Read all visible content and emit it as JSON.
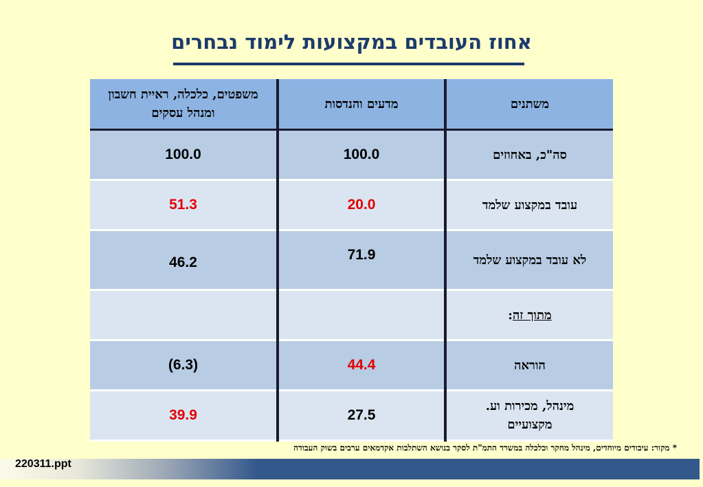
{
  "title": "אחוז העובדים במקצועות לימוד נבחרים",
  "table": {
    "headers": {
      "variables": "משתנים",
      "sciences": "מדעים והנדסות",
      "law": "משפטים, כלכלה, ראיית חשבון ומנהל עסקים"
    },
    "rows": [
      {
        "label": "סה\"כ, באחוזים",
        "sciences": "100.0",
        "law": "100.0",
        "sciences_red": false,
        "law_red": false
      },
      {
        "label": "עובד במקצוע שלמד",
        "sciences": "20.0",
        "law": "51.3",
        "sciences_red": true,
        "law_red": true
      },
      {
        "label": "לא עובד במקצוע שלמד",
        "sciences": "71.9",
        "law": "46.2",
        "sciences_red": false,
        "law_red": false
      },
      {
        "label": "מתוך זה",
        "label_suffix": ":",
        "sciences": "",
        "law": "",
        "sciences_red": false,
        "law_red": false
      },
      {
        "label": "הוראה",
        "sciences": "44.4",
        "law": "(6.3)",
        "sciences_red": true,
        "law_red": false
      },
      {
        "label": "מינהל, מכירות וע. מקצועיים",
        "sciences": "27.5",
        "law": "39.9",
        "sciences_red": false,
        "law_red": true
      }
    ]
  },
  "footnote": "* מקור: עיבודים מיוחדים, מינהל מחקר וכלכלה במשרד התמ\"ת לסקר בנושא השתלבות אקדמאים ערבים בשוק העבודה",
  "file_label": "220311.ppt",
  "colors": {
    "title": "#1c3a6b",
    "header_bg": "#8db3e2",
    "row_dark": "#b8cce4",
    "row_light": "#dbe5f1",
    "highlight_red": "#e30000",
    "background": "#ffffcc",
    "bottom_bar": "#33588c"
  }
}
